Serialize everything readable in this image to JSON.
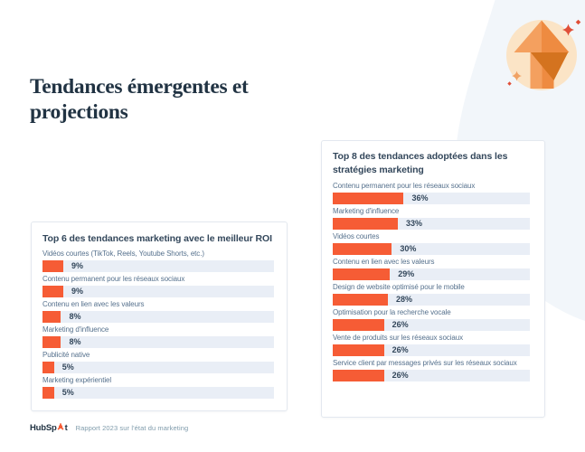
{
  "colors": {
    "accent": "#f65c35",
    "track": "#e9eef6",
    "heading": "#213343",
    "label": "#56718d",
    "blob": "#f2f6fa",
    "icon_circle": "#fbe4c6",
    "arrow_light": "#f4a05f",
    "arrow_dark": "#ee8b41",
    "arrow_shadow": "#d4731f",
    "sparkle_red": "#e04f38",
    "sparkle_orange": "#f0a265",
    "card_border": "#e3e8ef",
    "muted": "#7f9bab"
  },
  "header": {
    "title": "Tendances émergentes et projections",
    "title_lines": [
      "Tendances émergentes et",
      "projections"
    ]
  },
  "icon": {
    "name": "growth-arrow-badge"
  },
  "footer": {
    "brand_prefix": "HubSp",
    "brand_suffix": "t",
    "brand_full": "HubSpot",
    "caption": "Rapport 2023 sur l'état du marketing"
  },
  "chart_data": [
    {
      "type": "bar",
      "orientation": "horizontal",
      "title": "Top 6 des tendances marketing avec le meilleur ROI",
      "unit": "%",
      "xlim": [
        0,
        100
      ],
      "grid": false,
      "legend": "none",
      "categories": [
        "Vidéos courtes (TikTok, Reels, Youtube Shorts, etc.)",
        "Contenu permanent pour les réseaux sociaux",
        "Contenu en lien avec les valeurs",
        "Marketing d'influence",
        "Publicité native",
        "Marketing expérientiel"
      ],
      "values": [
        9,
        9,
        8,
        8,
        5,
        5
      ],
      "value_labels": [
        "9%",
        "9%",
        "8%",
        "8%",
        "5%",
        "5%"
      ]
    },
    {
      "type": "bar",
      "orientation": "horizontal",
      "title": "Top 8 des tendances adoptées dans les stratégies marketing",
      "unit": "%",
      "xlim": [
        0,
        100
      ],
      "grid": false,
      "legend": "none",
      "categories": [
        "Contenu permanent pour les réseaux sociaux",
        "Marketing d'influence",
        "Vidéos courtes",
        "Contenu en lien avec les valeurs",
        "Design de website optimisé pour le mobile",
        "Optimisation pour la recherche vocale",
        "Vente de produits sur les réseaux sociaux",
        "Service client par messages privés sur les réseaux sociaux"
      ],
      "values": [
        36,
        33,
        30,
        29,
        28,
        26,
        26,
        26
      ],
      "value_labels": [
        "36%",
        "33%",
        "30%",
        "29%",
        "28%",
        "26%",
        "26%",
        "26%"
      ]
    }
  ]
}
